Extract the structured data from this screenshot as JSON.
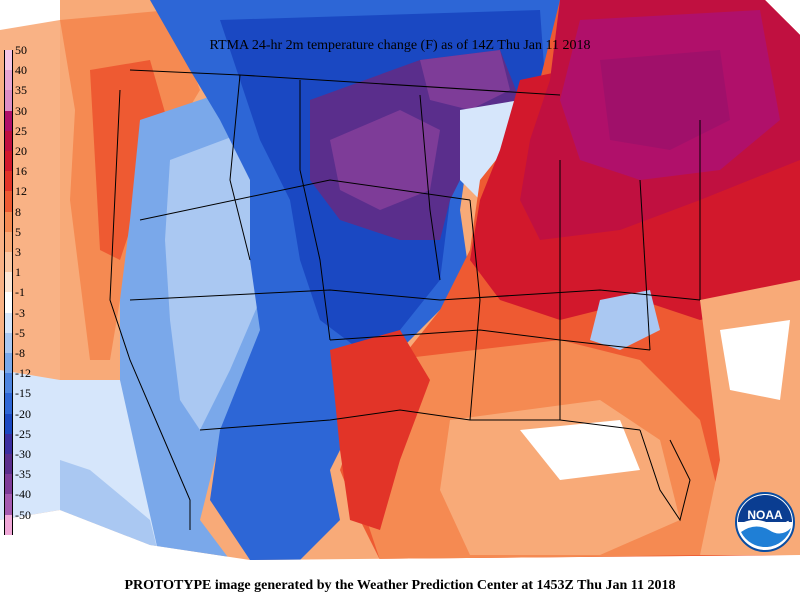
{
  "title": "RTMA 24-hr 2m temperature change (F) as of 14Z Thu Jan 11 2018",
  "footer": "PROTOTYPE image generated by the Weather Prediction Center at 1453Z Thu Jan 11 2018",
  "logo_text": "NOAA",
  "legend": [
    {
      "label": "50",
      "color": "#f5c6e6"
    },
    {
      "label": "40",
      "color": "#e8a6d4"
    },
    {
      "label": "35",
      "color": "#dd8ec6"
    },
    {
      "label": "30",
      "color": "#b0106a"
    },
    {
      "label": "25",
      "color": "#c01040"
    },
    {
      "label": "20",
      "color": "#d2182c"
    },
    {
      "label": "16",
      "color": "#e23428"
    },
    {
      "label": "12",
      "color": "#ee5a32"
    },
    {
      "label": "8",
      "color": "#f58a52"
    },
    {
      "label": "5",
      "color": "#f8aa78"
    },
    {
      "label": "3",
      "color": "#fbc8a4"
    },
    {
      "label": "1",
      "color": "#fde6d4"
    },
    {
      "label": "-1",
      "color": "#ffffff"
    },
    {
      "label": "-3",
      "color": "#d6e6fb"
    },
    {
      "label": "-5",
      "color": "#aac8f2"
    },
    {
      "label": "-8",
      "color": "#7aa8ea"
    },
    {
      "label": "-12",
      "color": "#4c84e0"
    },
    {
      "label": "-15",
      "color": "#2d66d6"
    },
    {
      "label": "-20",
      "color": "#1a48c2"
    },
    {
      "label": "-25",
      "color": "#3a2ea0"
    },
    {
      "label": "-30",
      "color": "#5a2e8c"
    },
    {
      "label": "-35",
      "color": "#7e3c98"
    },
    {
      "label": "-40",
      "color": "#a55ab0"
    },
    {
      "label": "-50",
      "color": "#f0a8d8"
    }
  ]
}
